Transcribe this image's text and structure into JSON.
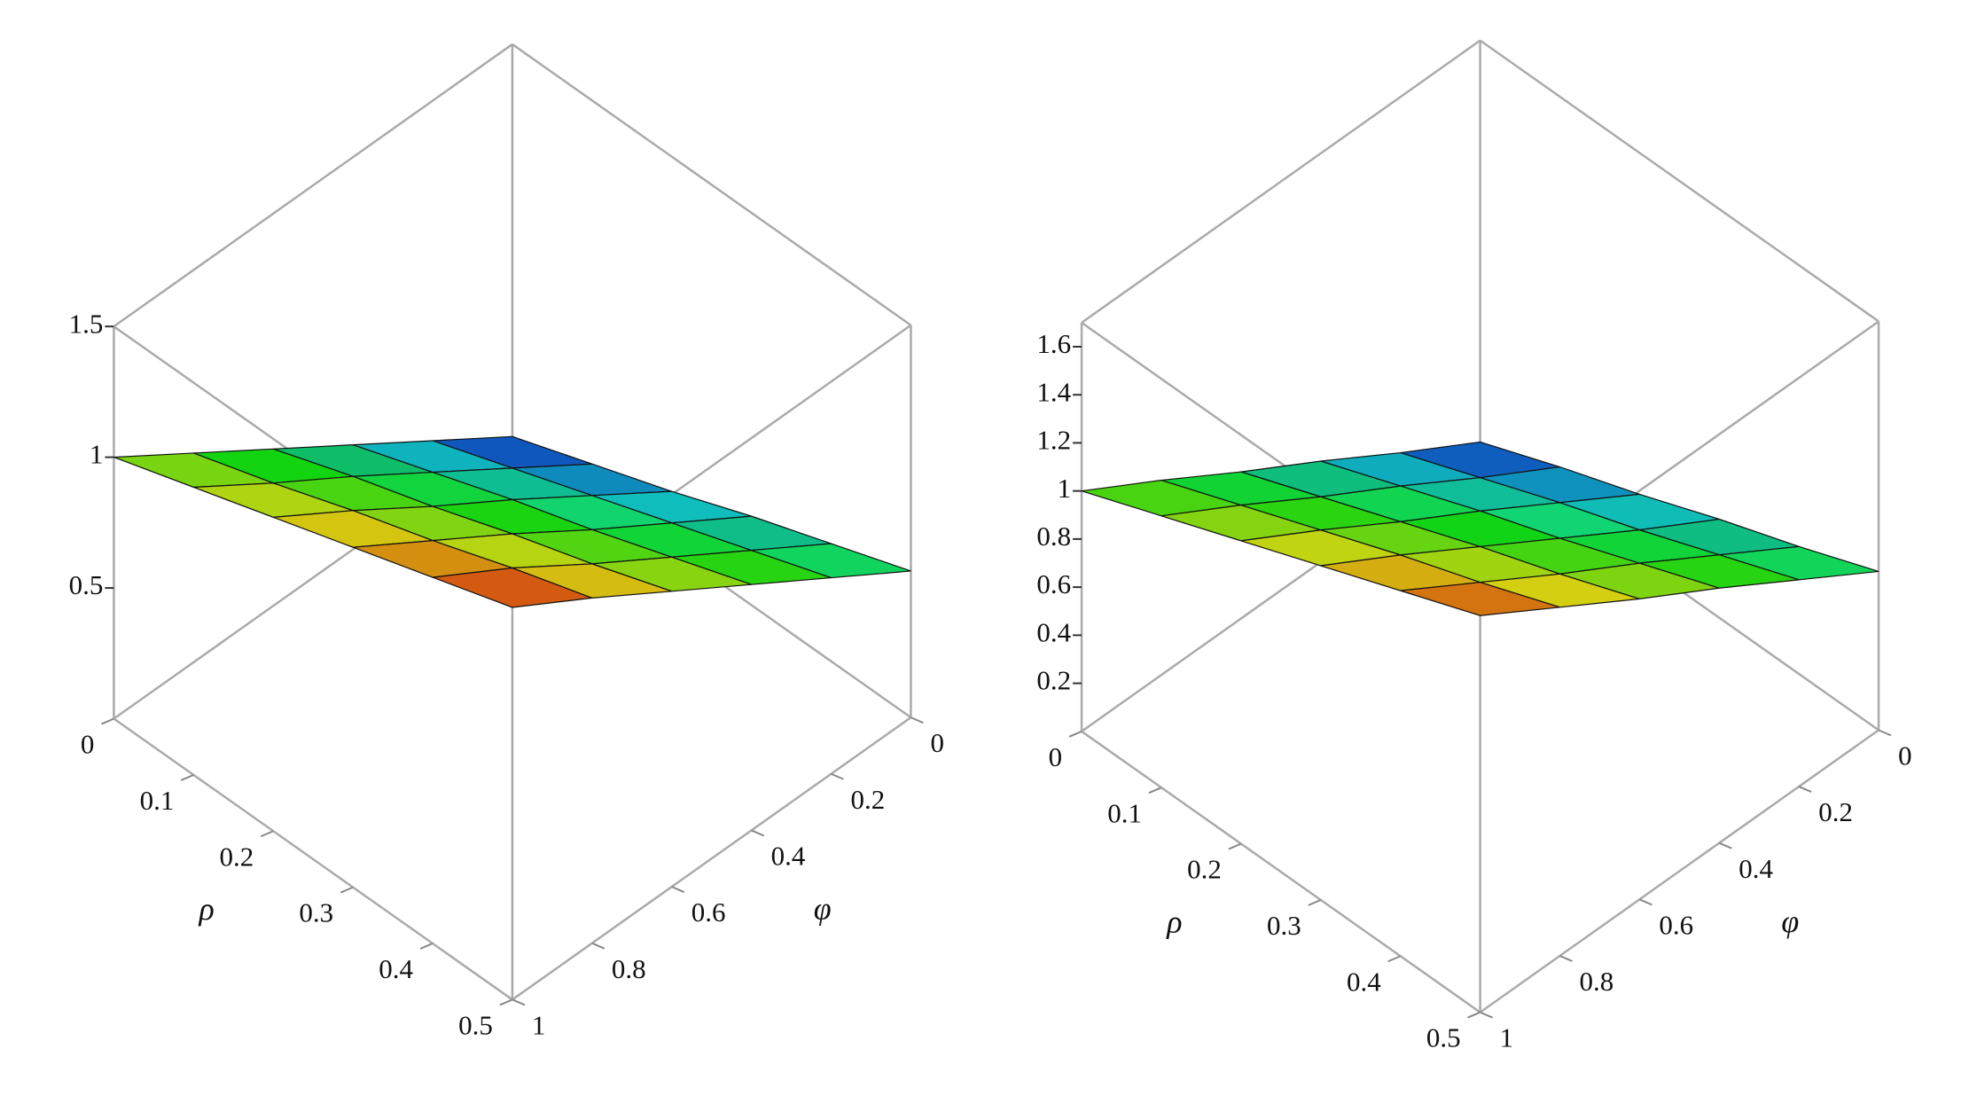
{
  "chart_data": [
    {
      "type": "surface3d",
      "xlabel": "ρ",
      "ylabel": "φ",
      "x": [
        0,
        0.1,
        0.2,
        0.3,
        0.4,
        0.5
      ],
      "y": [
        0,
        0.2,
        0.4,
        0.6,
        0.8,
        1
      ],
      "z": [
        [
          0,
          0.2,
          0.4,
          0.6,
          0.8,
          1.0
        ],
        [
          0.11,
          0.31,
          0.51,
          0.71,
          0.9,
          1.1
        ],
        [
          0.22,
          0.42,
          0.62,
          0.81,
          1.01,
          1.2
        ],
        [
          0.34,
          0.53,
          0.72,
          0.92,
          1.11,
          1.3
        ],
        [
          0.45,
          0.64,
          0.83,
          1.02,
          1.22,
          1.4
        ],
        [
          0.56,
          0.75,
          0.94,
          1.13,
          1.32,
          1.5
        ]
      ],
      "xlim": [
        0,
        0.5
      ],
      "ylim": [
        0,
        1
      ],
      "zlim": [
        0,
        1.5
      ],
      "xticks": [
        0,
        0.1,
        0.2,
        0.3,
        0.4,
        0.5
      ],
      "yticks": [
        0,
        0.2,
        0.4,
        0.6,
        0.8,
        1
      ],
      "zticks": [
        0.5,
        1,
        1.5
      ]
    },
    {
      "type": "surface3d",
      "xlabel": "ρ",
      "ylabel": "φ",
      "x": [
        0,
        0.1,
        0.2,
        0.3,
        0.4,
        0.5
      ],
      "y": [
        0,
        0.2,
        0.4,
        0.6,
        0.8,
        1
      ],
      "z": [
        [
          0.03,
          0.22,
          0.42,
          0.61,
          0.81,
          1.0
        ],
        [
          0.16,
          0.35,
          0.55,
          0.74,
          0.94,
          1.13
        ],
        [
          0.28,
          0.48,
          0.68,
          0.87,
          1.07,
          1.26
        ],
        [
          0.41,
          0.6,
          0.8,
          1.0,
          1.2,
          1.39
        ],
        [
          0.53,
          0.73,
          0.93,
          1.12,
          1.32,
          1.52
        ],
        [
          0.66,
          0.86,
          1.06,
          1.25,
          1.45,
          1.65
        ]
      ],
      "xlim": [
        0,
        0.5
      ],
      "ylim": [
        0,
        1
      ],
      "zlim": [
        0,
        1.7
      ],
      "xticks": [
        0,
        0.1,
        0.2,
        0.3,
        0.4,
        0.5
      ],
      "yticks": [
        0,
        0.2,
        0.4,
        0.6,
        0.8,
        1
      ],
      "zticks": [
        0.2,
        0.4,
        0.6,
        0.8,
        1,
        1.2,
        1.4,
        1.6
      ]
    }
  ]
}
